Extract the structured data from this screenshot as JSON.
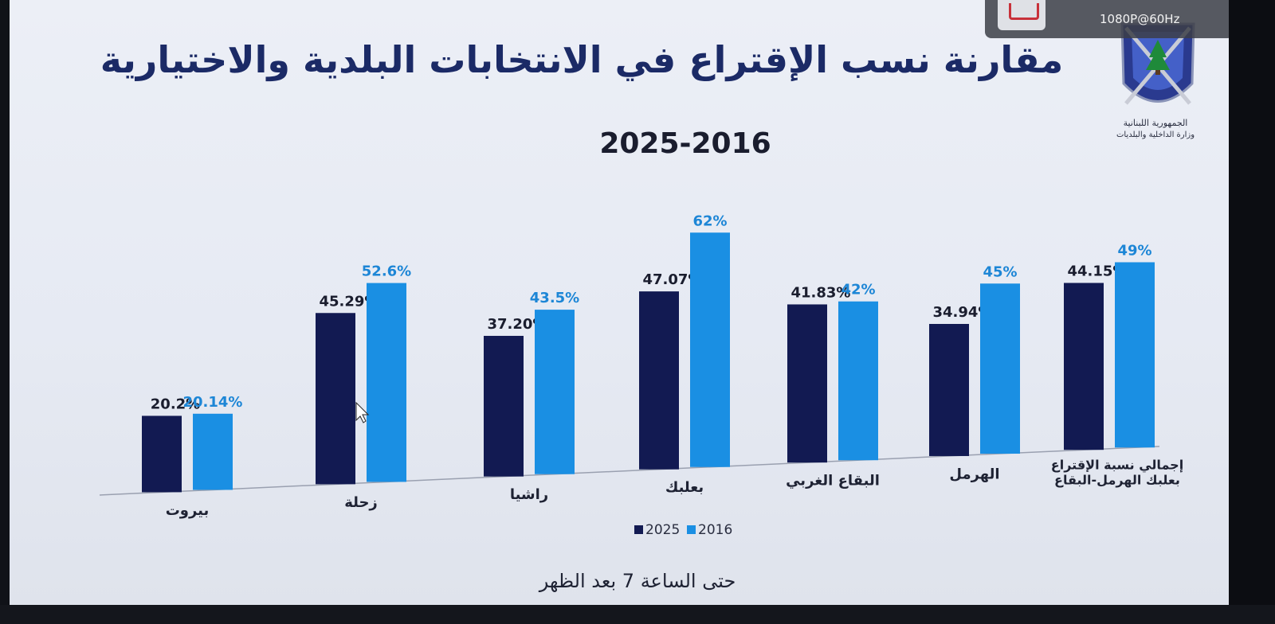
{
  "overlay": {
    "resolution": "1080P@60Hz"
  },
  "header": {
    "title": "مقارنة نسب الإقتراع في الانتخابات البلدية والاختيارية",
    "subtitle": "2025-2016"
  },
  "emblem": {
    "line1": "الجمهورية اللبنانية",
    "line2": "وزارة الداخلية والبلديات"
  },
  "footer": {
    "note": "حتى الساعة 7 بعد الظهر"
  },
  "colors": {
    "series_2025": "#121a52",
    "series_2016": "#1a8fe3",
    "label_2016": "#1d86d6",
    "label_2025": "#1a1d2e"
  },
  "chart_data": {
    "type": "bar",
    "title": "مقارنة نسب الإقتراع في الانتخابات البلدية والاختيارية",
    "subtitle": "2025-2016",
    "categories": [
      "بيروت",
      "زحلة",
      "راشيا",
      "بعلبك",
      "البقاع الغربي",
      "الهرمل",
      "إجمالي نسبة الإقتراع بعلبك الهرمل-البقاع"
    ],
    "series": [
      {
        "name": "2025",
        "values": [
          20.2,
          45.29,
          37.2,
          47.07,
          41.83,
          34.94,
          44.15
        ],
        "labels": [
          "20.2%",
          "45.29%",
          "37.20%",
          "47.07%",
          "41.83%",
          "34.94%",
          "44.15%"
        ]
      },
      {
        "name": "2016",
        "values": [
          20.14,
          52.6,
          43.5,
          62,
          42,
          45,
          49
        ],
        "labels": [
          "20.14%",
          "52.6%",
          "43.5%",
          "62%",
          "42%",
          "45%",
          "49%"
        ]
      }
    ],
    "legend_position": "bottom",
    "grid": false,
    "ylim": [
      0,
      65
    ]
  }
}
